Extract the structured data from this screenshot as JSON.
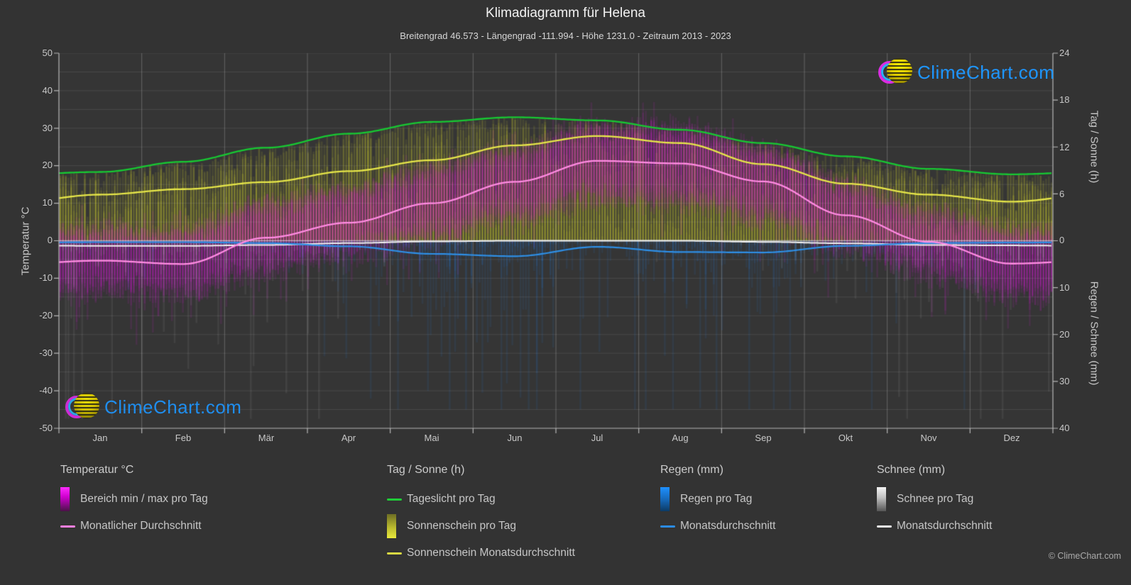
{
  "header": {
    "title": "Klimadiagramm für Helena",
    "subtitle": "Breitengrad 46.573 - Längengrad -111.994 - Höhe 1231.0 - Zeitraum 2013 - 2023"
  },
  "watermark": {
    "text": "ClimeChart.com"
  },
  "copyright": "© ClimeChart.com",
  "axes": {
    "left_label": "Temperatur °C",
    "right_top_label": "Tag / Sonne (h)",
    "right_bottom_label": "Regen / Schnee (mm)",
    "left_ticks": [
      50,
      40,
      30,
      20,
      10,
      0,
      -10,
      -20,
      -30,
      -40,
      -50
    ],
    "right_top_ticks": [
      24,
      18,
      12,
      6,
      0
    ],
    "right_bottom_ticks": [
      10,
      20,
      30,
      40
    ],
    "month_labels": [
      "Jan",
      "Feb",
      "Mär",
      "Apr",
      "Mai",
      "Jun",
      "Jul",
      "Aug",
      "Sep",
      "Okt",
      "Nov",
      "Dez"
    ]
  },
  "legend": {
    "temperature": {
      "title": "Temperatur °C",
      "items": [
        "Bereich min / max pro Tag",
        "Monatlicher Durchschnitt"
      ]
    },
    "sun": {
      "title": "Tag / Sonne (h)",
      "items": [
        "Tageslicht pro Tag",
        "Sonnenschein pro Tag",
        "Sonnenschein Monatsdurchschnitt"
      ]
    },
    "rain": {
      "title": "Regen (mm)",
      "items": [
        "Regen pro Tag",
        "Monatsdurchschnitt"
      ]
    },
    "snow": {
      "title": "Schnee (mm)",
      "items": [
        "Schnee pro Tag",
        "Monatsdurchschnitt"
      ]
    }
  },
  "chart_data": {
    "type": "line",
    "title": "Klimadiagramm für Helena",
    "months": [
      "Jan",
      "Feb",
      "Mär",
      "Apr",
      "Mai",
      "Jun",
      "Jul",
      "Aug",
      "Sep",
      "Okt",
      "Nov",
      "Dez"
    ],
    "axis_ranges": {
      "temperature_c": [
        -50,
        50
      ],
      "day_sun_h": [
        0,
        24
      ],
      "rain_snow_mm": [
        0,
        40
      ],
      "rain_snow_inverted": true
    },
    "grid": true,
    "legend_position": "bottom",
    "monthly": {
      "daylight_h": [
        8.8,
        10.1,
        11.9,
        13.7,
        15.2,
        15.8,
        15.4,
        14.2,
        12.5,
        10.8,
        9.2,
        8.5
      ],
      "sunshine_h": [
        5.9,
        6.6,
        7.5,
        8.9,
        10.3,
        12.2,
        13.4,
        12.5,
        9.8,
        7.3,
        5.9,
        5.0
      ],
      "temp_avg_c": [
        -5.3,
        -6.2,
        0.8,
        4.8,
        10.0,
        15.7,
        21.3,
        20.6,
        15.8,
        6.8,
        -0.3,
        -6.1
      ],
      "temp_max_c": [
        0.8,
        0.3,
        7.5,
        11.5,
        16.5,
        22.0,
        28.5,
        28.0,
        22.5,
        13.0,
        5.0,
        0.5
      ],
      "temp_min_c": [
        -11.0,
        -12.0,
        -5.5,
        -1.5,
        3.5,
        9.0,
        14.0,
        13.0,
        9.0,
        1.0,
        -6.0,
        -12.0
      ],
      "rain_mm_day": [
        0.3,
        0.3,
        0.5,
        1.2,
        2.8,
        3.3,
        1.3,
        2.4,
        2.5,
        1.1,
        0.5,
        0.4
      ],
      "snow_mm_day": [
        1.1,
        1.1,
        0.9,
        0.5,
        0.15,
        0.0,
        0.0,
        0.0,
        0.25,
        0.55,
        0.9,
        1.0
      ]
    },
    "series": [
      {
        "name": "Tageslicht pro Tag",
        "unit": "h",
        "render": "line",
        "color": "#17c932",
        "data_key": "daylight_h"
      },
      {
        "name": "Sonnenschein pro Tag",
        "unit": "h",
        "render": "daily-bars",
        "color": "#d0d034",
        "data_key": "sunshine_h"
      },
      {
        "name": "Sonnenschein Monatsdurchschnitt",
        "unit": "h",
        "render": "line",
        "color": "#e6e649",
        "data_key": "sunshine_h"
      },
      {
        "name": "Bereich min / max pro Tag",
        "unit": "°C",
        "render": "daily-bars",
        "color": "#de1cde",
        "data_key_max": "temp_max_c",
        "data_key_min": "temp_min_c"
      },
      {
        "name": "Monatlicher Durchschnitt",
        "unit": "°C",
        "render": "line",
        "color": "#ff8be2",
        "data_key": "temp_avg_c"
      },
      {
        "name": "Regen pro Tag",
        "unit": "mm",
        "render": "daily-bars",
        "color": "#267ee0",
        "data_key": "rain_mm_day"
      },
      {
        "name": "Regen Monatsdurchschnitt",
        "unit": "mm/Tag",
        "render": "line",
        "color": "#2e8fe6",
        "data_key": "rain_mm_day"
      },
      {
        "name": "Schnee pro Tag",
        "unit": "mm",
        "render": "daily-bars",
        "color": "#cdcdd4",
        "data_key": "snow_mm_day"
      },
      {
        "name": "Schnee Monatsdurchschnitt",
        "unit": "mm/Tag",
        "render": "line",
        "color": "#f2f2f2",
        "data_key": "snow_mm_day"
      }
    ]
  }
}
